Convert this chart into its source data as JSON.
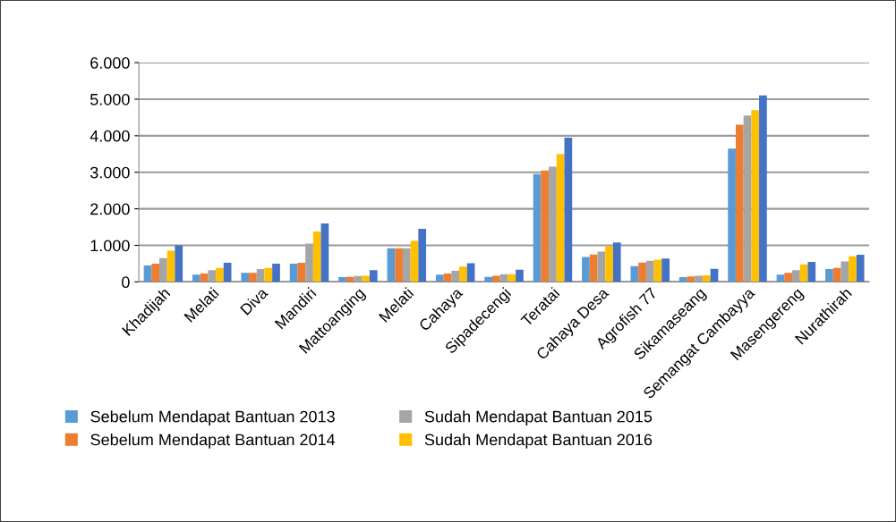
{
  "chart_data": {
    "type": "bar",
    "categories": [
      "Khadijah",
      "Melati",
      "Diva",
      "Mandiri",
      "Mattoanging",
      "Melati",
      "Cahaya",
      "Sipadecengi",
      "Teratai",
      "Cahaya Desa",
      "Agrofish 77",
      "Sikamaseang",
      "Semangat Cambayya",
      "Masengereng",
      "Nurathirah"
    ],
    "series": [
      {
        "name": "Sebelum Mendapat Bantuan 2013",
        "color": "#5b9bd5",
        "values": [
          450,
          200,
          250,
          500,
          130,
          920,
          200,
          140,
          2950,
          680,
          430,
          130,
          3650,
          200,
          350
        ]
      },
      {
        "name": "Sebelum Mendapat Bantuan 2014",
        "color": "#ed7d31",
        "values": [
          500,
          230,
          250,
          520,
          140,
          920,
          230,
          170,
          3050,
          750,
          530,
          150,
          4300,
          250,
          380
        ]
      },
      {
        "name": "Sudah Mendapat Bantuan 2015",
        "color": "#a5a5a5",
        "values": [
          650,
          320,
          350,
          1050,
          160,
          920,
          300,
          210,
          3150,
          830,
          580,
          170,
          4550,
          320,
          560
        ]
      },
      {
        "name": "Sudah Mendapat Bantuan 2016",
        "color": "#ffc000",
        "values": [
          850,
          380,
          380,
          1380,
          170,
          1120,
          420,
          210,
          3500,
          980,
          610,
          180,
          4700,
          480,
          700
        ]
      },
      {
        "color": "#4472c4",
        "values": [
          1000,
          520,
          500,
          1600,
          320,
          1450,
          510,
          330,
          3950,
          1080,
          640,
          360,
          5100,
          550,
          740
        ]
      }
    ],
    "ylim": [
      0,
      6000
    ],
    "yticks": [
      {
        "value": 0,
        "label": "0"
      },
      {
        "value": 1000,
        "label": "1.000"
      },
      {
        "value": 2000,
        "label": "2.000"
      },
      {
        "value": 3000,
        "label": "3.000"
      },
      {
        "value": 4000,
        "label": "4.000"
      },
      {
        "value": 5000,
        "label": "5.000"
      },
      {
        "value": 6000,
        "label": "6.000"
      }
    ],
    "grid": "y",
    "legend": "bottom"
  }
}
